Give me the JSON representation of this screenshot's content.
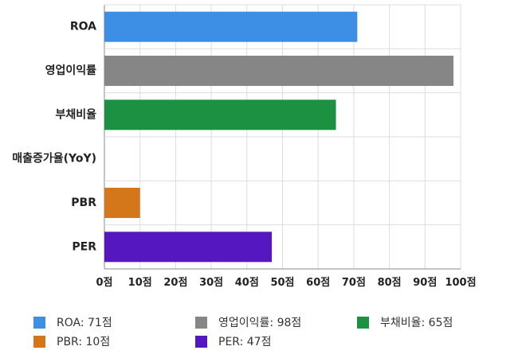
{
  "chart_data": {
    "type": "bar",
    "orientation": "horizontal",
    "categories": [
      "ROA",
      "영업이익률",
      "부채비율",
      "매출증가율(YoY)",
      "PBR",
      "PER"
    ],
    "values": [
      71,
      98,
      65,
      0,
      10,
      47
    ],
    "colors": [
      "#3d8fe6",
      "#868686",
      "#1c9142",
      "#3d8fe6",
      "#d4761a",
      "#5517c0"
    ],
    "x_ticks": [
      "0점",
      "10점",
      "20점",
      "30점",
      "40점",
      "50점",
      "60점",
      "70점",
      "80점",
      "90점",
      "100점"
    ],
    "xlim": [
      0,
      100
    ],
    "grid": true,
    "legend_position": "bottom"
  },
  "legend": [
    {
      "label": "ROA: 71점",
      "color": "#3d8fe6"
    },
    {
      "label": "영업이익률: 98점",
      "color": "#868686"
    },
    {
      "label": "부채비율: 65점",
      "color": "#1c9142"
    },
    {
      "label": "PBR: 10점",
      "color": "#d4761a"
    },
    {
      "label": "PER: 47점",
      "color": "#5517c0"
    }
  ]
}
